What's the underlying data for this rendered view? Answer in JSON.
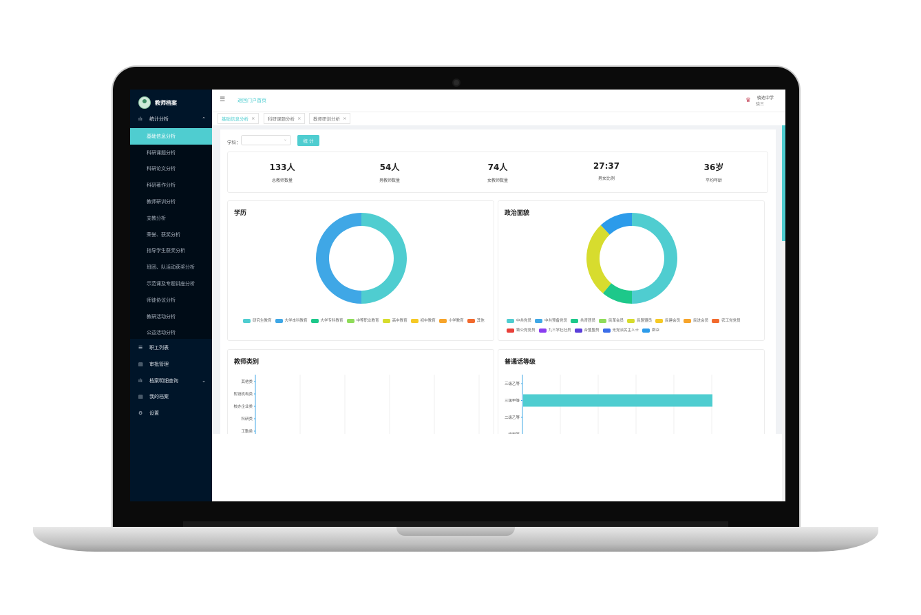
{
  "app": {
    "title": "教师档案"
  },
  "sidebar": {
    "group_label": "统计分析",
    "sub_items": [
      "基础信息分析",
      "科研课题分析",
      "科研论文分析",
      "科研著作分析",
      "教师研训分析",
      "支教分析",
      "荣誉、获奖分析",
      "指导学生获奖分析",
      "班团、队活动获奖分析",
      "示范课及专题讲座分析",
      "师徒协议分析",
      "教研活动分析",
      "公益活动分析"
    ],
    "bottom_items": [
      {
        "label": "职工列表",
        "icon": "list-icon"
      },
      {
        "label": "审批管理",
        "icon": "document-icon"
      },
      {
        "label": "档案明细查询",
        "icon": "bar-chart-icon"
      },
      {
        "label": "我的档案",
        "icon": "document-icon"
      },
      {
        "label": "设置",
        "icon": "gear-icon"
      }
    ]
  },
  "topbar": {
    "home_link": "返回门户首页",
    "school": "骁达中学",
    "user": "骁三"
  },
  "tabs": [
    {
      "label": "基础信息分析",
      "close": "×"
    },
    {
      "label": "科研课题分析",
      "close": "×"
    },
    {
      "label": "教师研训分析",
      "close": "×"
    }
  ],
  "filter": {
    "label": "学科：",
    "button": "统 计"
  },
  "stats": [
    {
      "value": "133人",
      "label": "总教师数量"
    },
    {
      "value": "54人",
      "label": "男教师数量"
    },
    {
      "value": "74人",
      "label": "女教师数量"
    },
    {
      "value": "27:37",
      "label": "男女比例"
    },
    {
      "value": "36岁",
      "label": "平均年龄"
    }
  ],
  "chart_data": [
    {
      "type": "pie",
      "title": "学历",
      "donut": true,
      "categories": [
        "研究生教育",
        "大学本科教育",
        "大学专科教育",
        "中等职业教育",
        "高中教育",
        "初中教育",
        "小学教育",
        "其他"
      ],
      "colors": [
        "#4fcdd0",
        "#3fa7e6",
        "#1dc88a",
        "#8fdc5a",
        "#d7dc2e",
        "#f6c925",
        "#f7a42b",
        "#f26a2e"
      ],
      "values": [
        50,
        50,
        0,
        0,
        0,
        0,
        0,
        0
      ]
    },
    {
      "type": "pie",
      "title": "政治面貌",
      "donut": true,
      "categories": [
        "中共党员",
        "中共预备党员",
        "共青团员",
        "民革会员",
        "民盟盟员",
        "民建会员",
        "民进会员",
        "农工党党员",
        "致公党党员",
        "九三学社社员",
        "台盟盟员",
        "无党派民主人士",
        "群众"
      ],
      "colors": [
        "#4fcdd0",
        "#3fa7e6",
        "#1dc88a",
        "#8fdc5a",
        "#d7dc2e",
        "#f6c925",
        "#f7a42b",
        "#f26a2e",
        "#e8403a",
        "#8a3df0",
        "#5b3fd9",
        "#3b6de8",
        "#2c9bea"
      ],
      "values": [
        50,
        0,
        11,
        0,
        27,
        0,
        0,
        0,
        0,
        0,
        0,
        0,
        12
      ]
    },
    {
      "type": "bar",
      "title": "教师类别",
      "orientation": "horizontal",
      "categories": [
        "其他类",
        "附设机构类",
        "校办企业类",
        "科研类",
        "工勤类"
      ],
      "values": [
        0,
        0,
        0,
        0,
        0
      ]
    },
    {
      "type": "bar",
      "title": "普通话等级",
      "orientation": "horizontal",
      "categories": [
        "三级乙等",
        "三级甲等",
        "二级乙等",
        "一级甲等"
      ],
      "values": [
        0,
        1,
        0,
        0
      ],
      "color": "#4fcdd0"
    }
  ]
}
